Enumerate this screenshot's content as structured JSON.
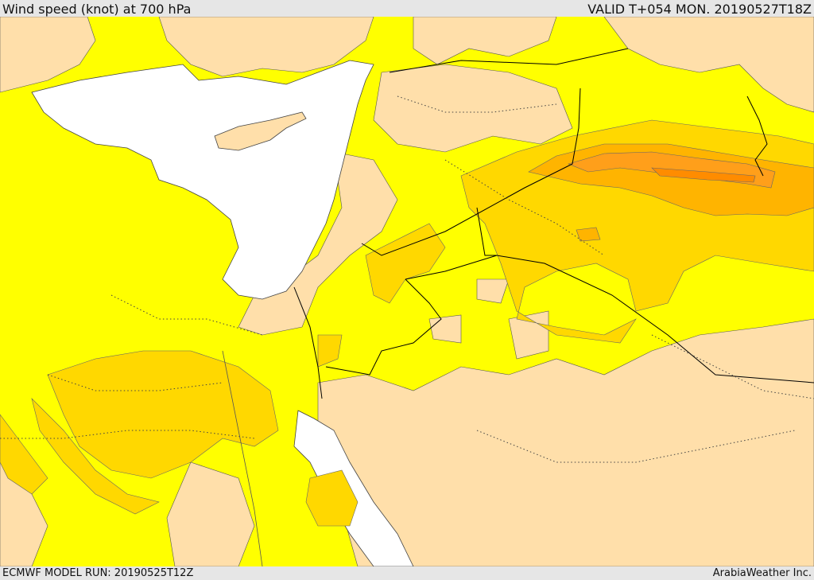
{
  "header": {
    "title": "Wind speed (knot) at 700 hPa",
    "valid": "VALID T+054 MON. 20190527T18Z"
  },
  "footer": {
    "model_run": "ECMWF MODEL RUN: 20190525T12Z",
    "credit": "ArabiaWeather Inc."
  },
  "map": {
    "colors": {
      "background_sea": "#ffffff",
      "speed_low": "#ffdfaa",
      "speed_1": "#ffff00",
      "speed_2": "#ffd800",
      "speed_3": "#ffb400",
      "speed_4": "#ff9f1a",
      "coastline": "#444444",
      "border": "#000000"
    }
  }
}
